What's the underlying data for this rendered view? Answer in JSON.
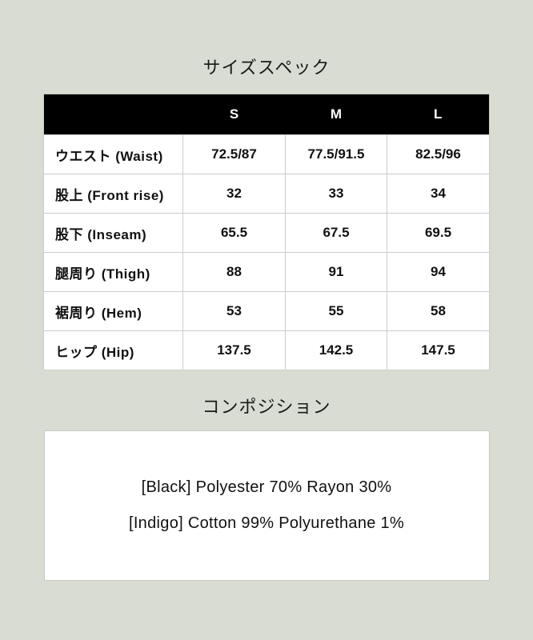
{
  "colors": {
    "background": "#d9dcd2",
    "table_header_bg": "#000000",
    "table_header_text": "#ffffff",
    "cell_bg": "#ffffff",
    "border": "#cccccc",
    "text": "#111111"
  },
  "size_spec": {
    "title": "サイズスペック",
    "columns": [
      "S",
      "M",
      "L"
    ],
    "rows": [
      {
        "label": "ウエスト (Waist)",
        "values": [
          "72.5/87",
          "77.5/91.5",
          "82.5/96"
        ]
      },
      {
        "label": "股上 (Front rise)",
        "values": [
          "32",
          "33",
          "34"
        ]
      },
      {
        "label": "股下 (Inseam)",
        "values": [
          "65.5",
          "67.5",
          "69.5"
        ]
      },
      {
        "label": "腿周り (Thigh)",
        "values": [
          "88",
          "91",
          "94"
        ]
      },
      {
        "label": "裾周り (Hem)",
        "values": [
          "53",
          "55",
          "58"
        ]
      },
      {
        "label": "ヒップ (Hip)",
        "values": [
          "137.5",
          "142.5",
          "147.5"
        ]
      }
    ]
  },
  "composition": {
    "title": "コンポジション",
    "lines": [
      "[Black] Polyester 70% Rayon 30%",
      "[Indigo] Cotton 99% Polyurethane 1%"
    ]
  }
}
